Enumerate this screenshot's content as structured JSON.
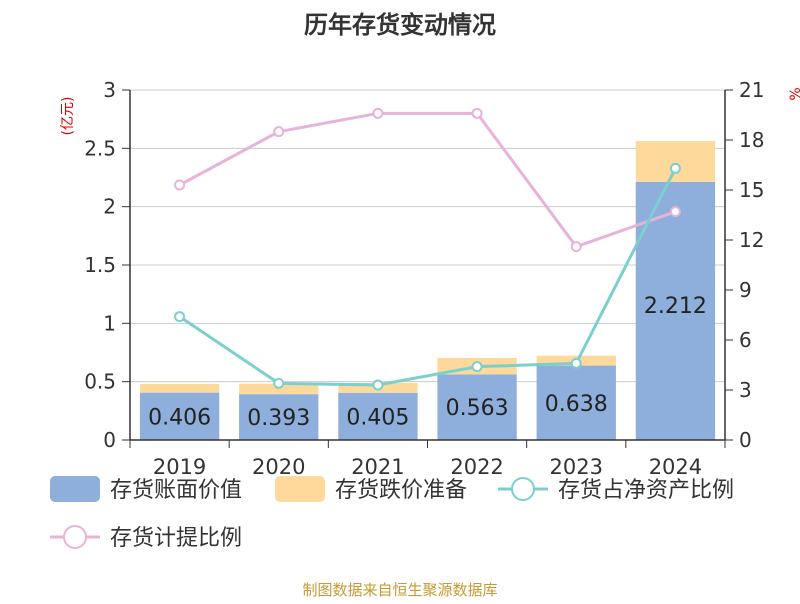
{
  "chart_data": {
    "type": "bar",
    "title": "历年存货变动情况",
    "categories": [
      "2019",
      "2020",
      "2021",
      "2022",
      "2023",
      "2024"
    ],
    "left_axis_unit": "(亿元)",
    "right_axis_unit": "%",
    "ylim_left": [
      0,
      3
    ],
    "yticks_left": [
      "0",
      "0.5",
      "1",
      "1.5",
      "2",
      "2.5",
      "3"
    ],
    "ylim_right": [
      0,
      21
    ],
    "yticks_right": [
      "0",
      "3",
      "6",
      "9",
      "12",
      "15",
      "18",
      "21"
    ],
    "grid": true,
    "legend_placement": "bottom",
    "stacked_series": [
      {
        "name": "存货账面价值",
        "color": "#8eaedc",
        "values": [
          0.406,
          0.393,
          0.405,
          0.563,
          0.638,
          2.212
        ]
      },
      {
        "name": "存货跌价准备",
        "color": "#fdd99b",
        "values": [
          0.075,
          0.09,
          0.085,
          0.14,
          0.085,
          0.35
        ]
      }
    ],
    "bar_labels": [
      "0.406",
      "0.393",
      "0.405",
      "0.563",
      "0.638",
      "2.212"
    ],
    "line_series": [
      {
        "name": "存货占净资产比例",
        "color": "#7ccfcf",
        "axis": "right",
        "values": [
          7.4,
          3.4,
          3.3,
          4.4,
          4.6,
          16.3
        ]
      },
      {
        "name": "存货计提比例",
        "color": "#e6b3d9",
        "axis": "right",
        "values": [
          15.3,
          18.5,
          19.6,
          19.6,
          11.6,
          13.7
        ]
      }
    ]
  },
  "source": "制图数据来自恒生聚源数据库"
}
